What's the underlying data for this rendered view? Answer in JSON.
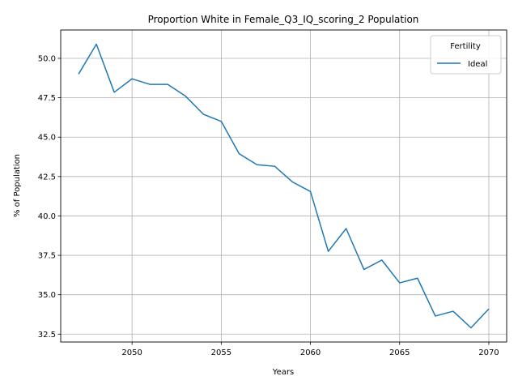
{
  "chart_data": {
    "type": "line",
    "title": "Proportion White in Female_Q3_IQ_scoring_2 Population",
    "xlabel": "Years",
    "ylabel": "% of Population",
    "xlim": [
      2046.0,
      2071.0
    ],
    "ylim": [
      32.0,
      51.8
    ],
    "xticks": [
      2050,
      2055,
      2060,
      2065,
      2070
    ],
    "yticks": [
      32.5,
      35.0,
      37.5,
      40.0,
      42.5,
      45.0,
      47.5,
      50.0
    ],
    "xtick_labels": [
      "2050",
      "2055",
      "2060",
      "2065",
      "2070"
    ],
    "ytick_labels": [
      "32.5",
      "35.0",
      "37.5",
      "40.0",
      "42.5",
      "45.0",
      "47.5",
      "50.0"
    ],
    "grid": true,
    "legend": {
      "title": "Fertility",
      "placement": "top-right"
    },
    "series": [
      {
        "name": "Ideal",
        "color": "#1f77b4",
        "x": [
          2047,
          2048,
          2049,
          2050,
          2051,
          2052,
          2053,
          2054,
          2055,
          2056,
          2057,
          2058,
          2059,
          2060,
          2061,
          2062,
          2063,
          2064,
          2065,
          2066,
          2067,
          2068,
          2069,
          2070
        ],
        "y": [
          49.0,
          50.9,
          47.85,
          48.7,
          48.35,
          48.35,
          47.6,
          46.45,
          46.0,
          43.95,
          43.25,
          43.15,
          42.15,
          41.55,
          37.75,
          39.2,
          36.6,
          37.2,
          35.75,
          36.05,
          33.65,
          33.95,
          32.9,
          34.1
        ]
      }
    ]
  }
}
